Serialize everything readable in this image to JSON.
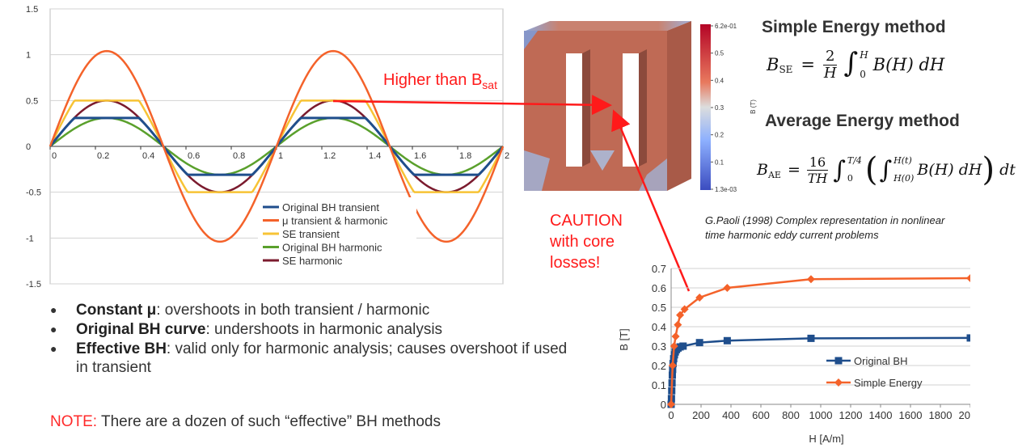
{
  "chart_data": [
    {
      "type": "line",
      "x_range": [
        0,
        2
      ],
      "ylim": [
        -1.5,
        1.5
      ],
      "x_ticks": [
        "0",
        "0.2",
        "0.4",
        "0.6",
        "0.8",
        "1",
        "1.2",
        "1.4",
        "1.6",
        "1.8",
        "2"
      ],
      "y_ticks": [
        "1.5",
        "1",
        "0.5",
        "0",
        "-0.5",
        "-1",
        "-1.5"
      ],
      "legend_position": "bottom-right",
      "series": [
        {
          "name": "Original BH transient",
          "color": "#1f4e8c",
          "amplitude": 0.31,
          "shape": "flat-top"
        },
        {
          "name": "μ transient & harmonic",
          "color": "#f4622a",
          "amplitude": 1.04,
          "shape": "sine"
        },
        {
          "name": "SE transient",
          "color": "#f7c335",
          "amplitude": 0.5,
          "shape": "flat-top"
        },
        {
          "name": "Original BH harmonic",
          "color": "#5aa02c",
          "amplitude": 0.31,
          "shape": "sine"
        },
        {
          "name": "SE harmonic",
          "color": "#7b1b2e",
          "amplitude": 0.5,
          "shape": "sine"
        }
      ]
    },
    {
      "type": "line",
      "xlabel": "H [A/m]",
      "ylabel": "B [T]",
      "xlim": [
        0,
        2000
      ],
      "ylim": [
        0,
        0.7
      ],
      "x_ticks": [
        "0",
        "200",
        "400",
        "600",
        "800",
        "1000",
        "1200",
        "1400",
        "1600",
        "1800",
        "2000"
      ],
      "y_ticks": [
        "0.7",
        "0.6",
        "0.5",
        "0.4",
        "0.3",
        "0.2",
        "0.1",
        "0"
      ],
      "legend_position": "right",
      "series": [
        {
          "name": "Original BH",
          "color": "#1f4e8c",
          "marker": "square",
          "x": [
            0,
            2,
            4,
            6,
            8,
            10,
            13,
            17,
            22,
            28,
            36,
            46,
            60,
            80,
            190,
            375,
            935,
            2000
          ],
          "y": [
            0,
            0.03,
            0.07,
            0.11,
            0.15,
            0.18,
            0.21,
            0.235,
            0.255,
            0.27,
            0.282,
            0.29,
            0.296,
            0.3,
            0.318,
            0.328,
            0.34,
            0.342
          ]
        },
        {
          "name": "Simple Energy",
          "color": "#f4622a",
          "marker": "diamond",
          "x": [
            0,
            10,
            20,
            30,
            45,
            60,
            90,
            190,
            375,
            935,
            2000
          ],
          "y": [
            0,
            0.2,
            0.3,
            0.35,
            0.41,
            0.46,
            0.49,
            0.55,
            0.6,
            0.645,
            0.65
          ]
        }
      ]
    }
  ],
  "colorbar": {
    "unit": "B (T)",
    "labels": [
      "6.2e-01",
      "0.5",
      "0.4",
      "0.3",
      "0.2",
      "0.1",
      "1.3e-03"
    ]
  },
  "annotations": {
    "higher_than": "Higher than B",
    "sat_sub": "sat",
    "caution_1": "CAUTION",
    "caution_2": "with core",
    "caution_3": "losses!"
  },
  "methods": {
    "simple_title": "Simple Energy method",
    "average_title": "Average Energy method",
    "citation_1": "G.Paoli (1998) Complex representation in nonlinear",
    "citation_2": "time harmonic eddy current problems"
  },
  "bullets": [
    {
      "bold": "Constant μ",
      "text": ": overshoots in both transient / harmonic"
    },
    {
      "bold": "Original BH curve",
      "text": ": undershoots in harmonic analysis"
    },
    {
      "bold": "Effective BH",
      "text": ": valid only for harmonic analysis; causes overshoot if used in transient"
    }
  ],
  "note": {
    "label": "NOTE:",
    "text": " There are a dozen of such “effective” BH methods"
  }
}
